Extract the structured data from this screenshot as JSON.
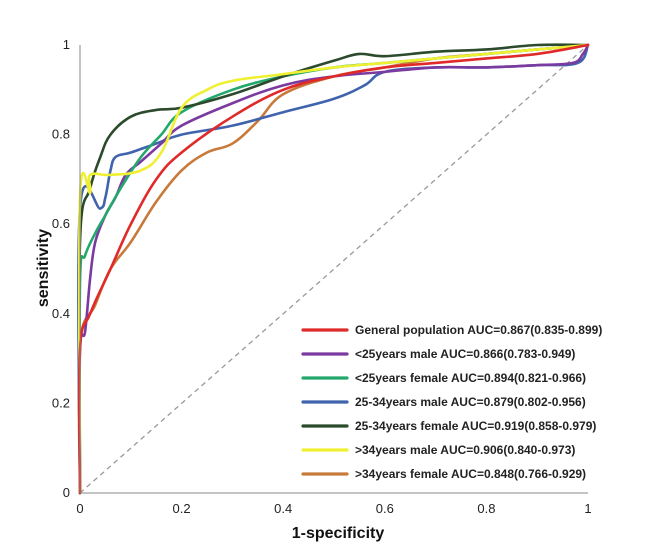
{
  "chart_data": {
    "type": "line",
    "title": "",
    "xlabel": "1-specificity",
    "ylabel": "sensitivity",
    "xlim": [
      0,
      1
    ],
    "ylim": [
      0,
      1
    ],
    "x_ticks": [
      "0",
      "0.2",
      "0.4",
      "0.6",
      "0.8",
      "1"
    ],
    "y_ticks": [
      "0",
      "0.2",
      "0.4",
      "0.6",
      "0.8",
      "1"
    ],
    "x_tick_values": [
      0,
      0.2,
      0.4,
      0.6,
      0.8,
      1
    ],
    "y_tick_values": [
      0,
      0.2,
      0.4,
      0.6,
      0.8,
      1
    ],
    "legend_position": "bottom-right",
    "reference_line": {
      "x": [
        0,
        1
      ],
      "y": [
        0,
        1
      ],
      "color": "#999999"
    },
    "series": [
      {
        "name": "General population AUC=0.867(0.835-0.899)",
        "color": "#e02a2a",
        "x": [
          0,
          0,
          0.02,
          0.06,
          0.1,
          0.15,
          0.2,
          0.3,
          0.4,
          0.5,
          0.6,
          0.7,
          0.8,
          0.9,
          1.0
        ],
        "y": [
          0,
          0.32,
          0.4,
          0.5,
          0.6,
          0.7,
          0.76,
          0.84,
          0.9,
          0.93,
          0.95,
          0.96,
          0.97,
          0.98,
          1.0
        ]
      },
      {
        "name": "<25years male AUC=0.866(0.783-0.949)",
        "color": "#7a3aa0",
        "x": [
          0,
          0,
          0.01,
          0.02,
          0.03,
          0.05,
          0.07,
          0.09,
          0.12,
          0.16,
          0.2,
          0.3,
          0.4,
          0.5,
          0.6,
          0.7,
          0.8,
          0.9,
          0.97,
          0.99,
          1.0
        ],
        "y": [
          0,
          0.32,
          0.36,
          0.48,
          0.56,
          0.62,
          0.66,
          0.71,
          0.74,
          0.78,
          0.82,
          0.87,
          0.91,
          0.93,
          0.94,
          0.95,
          0.95,
          0.955,
          0.96,
          0.98,
          1.0
        ]
      },
      {
        "name": "<25years female AUC=0.894(0.821-0.966)",
        "color": "#23a86c",
        "x": [
          0,
          0,
          0.01,
          0.03,
          0.05,
          0.08,
          0.12,
          0.16,
          0.2,
          0.3,
          0.4,
          0.5,
          0.6,
          0.7,
          0.8,
          0.9,
          1.0
        ],
        "y": [
          0,
          0.47,
          0.53,
          0.58,
          0.62,
          0.68,
          0.75,
          0.8,
          0.85,
          0.9,
          0.93,
          0.95,
          0.96,
          0.97,
          0.98,
          0.99,
          1.0
        ]
      },
      {
        "name": "25-34years male AUC=0.879(0.802-0.956)",
        "color": "#3f63ad",
        "x": [
          0,
          0,
          0.04,
          0.05,
          0.06,
          0.07,
          0.1,
          0.15,
          0.2,
          0.3,
          0.4,
          0.5,
          0.56,
          0.6,
          0.7,
          0.8,
          0.9,
          0.98,
          1.0
        ],
        "y": [
          0,
          0.635,
          0.635,
          0.66,
          0.72,
          0.75,
          0.76,
          0.78,
          0.8,
          0.82,
          0.85,
          0.88,
          0.91,
          0.94,
          0.95,
          0.95,
          0.955,
          0.96,
          1.0
        ]
      },
      {
        "name": "25-34years female AUC=0.919(0.858-0.979)",
        "color": "#2c4a2c",
        "x": [
          0,
          0,
          0.02,
          0.04,
          0.06,
          0.1,
          0.15,
          0.2,
          0.3,
          0.4,
          0.5,
          0.55,
          0.6,
          0.7,
          0.8,
          0.9,
          1.0
        ],
        "y": [
          0,
          0.56,
          0.68,
          0.75,
          0.8,
          0.84,
          0.855,
          0.86,
          0.89,
          0.93,
          0.965,
          0.98,
          0.975,
          0.985,
          0.99,
          1.0,
          1.0
        ]
      },
      {
        "name": ">34years male AUC=0.906(0.840-0.973)",
        "color": "#f0f032",
        "x": [
          0,
          0,
          0.02,
          0.02,
          0.06,
          0.12,
          0.16,
          0.2,
          0.25,
          0.3,
          0.4,
          0.5,
          0.6,
          0.7,
          0.8,
          0.9,
          1.0
        ],
        "y": [
          0,
          0.66,
          0.67,
          0.71,
          0.71,
          0.72,
          0.76,
          0.86,
          0.9,
          0.92,
          0.935,
          0.95,
          0.96,
          0.97,
          0.98,
          0.99,
          1.0
        ]
      },
      {
        "name": ">34years female AUC=0.848(0.766-0.929)",
        "color": "#c87a3a",
        "x": [
          0,
          0,
          0.03,
          0.06,
          0.1,
          0.15,
          0.2,
          0.25,
          0.3,
          0.35,
          0.4,
          0.5,
          0.6,
          0.7,
          0.8,
          0.9,
          1.0
        ],
        "y": [
          0,
          0.33,
          0.42,
          0.5,
          0.56,
          0.65,
          0.72,
          0.76,
          0.78,
          0.83,
          0.89,
          0.93,
          0.95,
          0.97,
          0.98,
          0.99,
          1.0
        ]
      }
    ]
  }
}
